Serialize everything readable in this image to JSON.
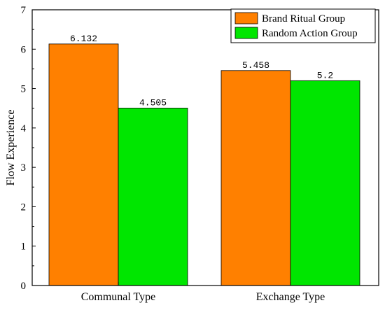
{
  "chart_data": {
    "type": "bar",
    "categories": [
      "Communal Type",
      "Exchange Type"
    ],
    "series": [
      {
        "name": "Brand Ritual Group",
        "color": "#ff8000",
        "values": [
          6.132,
          5.458
        ],
        "labels": [
          "6.132",
          "5.458"
        ]
      },
      {
        "name": "Random Action Group",
        "color": "#00e600",
        "values": [
          4.505,
          5.2
        ],
        "labels": [
          "4.505",
          "5.2"
        ]
      }
    ],
    "xlabel": "",
    "ylabel": "Flow Experience",
    "ylim": [
      0,
      7
    ],
    "yticks": [
      0,
      1,
      2,
      3,
      4,
      5,
      6,
      7
    ],
    "grid": false,
    "legend_position": "top-right"
  }
}
